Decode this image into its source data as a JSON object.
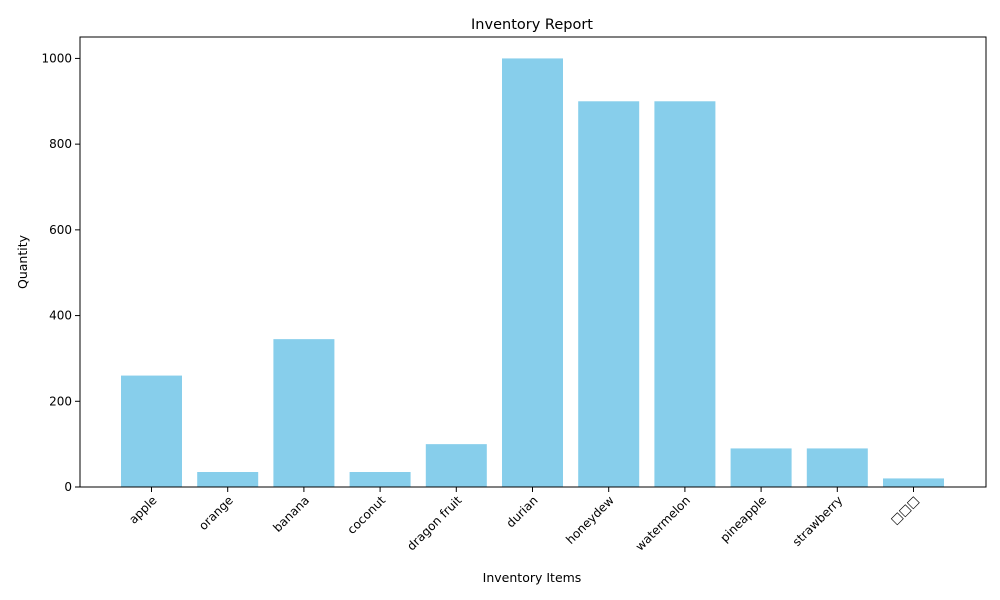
{
  "chart_data": {
    "type": "bar",
    "title": "Inventory Report",
    "xlabel": "Inventory Items",
    "ylabel": "Quantity",
    "categories": [
      "apple",
      "orange",
      "banana",
      "coconut",
      "dragon fruit",
      "durian",
      "honeydew",
      "watermelon",
      "pineapple",
      "strawberry",
      "□□□"
    ],
    "values": [
      260,
      35,
      345,
      35,
      100,
      1000,
      900,
      900,
      90,
      90,
      20
    ],
    "ylim": [
      0,
      1050
    ],
    "yticks": [
      0,
      200,
      400,
      600,
      800,
      1000
    ],
    "bar_color": "#87ceeb",
    "grid": false,
    "legend": false
  }
}
